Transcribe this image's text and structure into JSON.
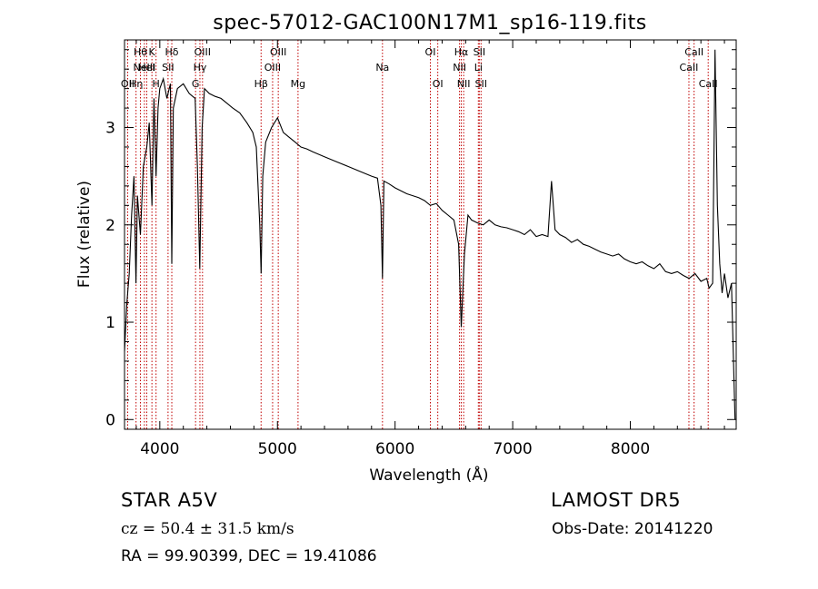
{
  "chart_data": {
    "type": "line",
    "title": "spec-57012-GAC100N17M1_sp16-119.fits",
    "xlabel": "Wavelength (Å)",
    "ylabel": "Flux (relative)",
    "xlim": [
      3700,
      8900
    ],
    "ylim": [
      -0.1,
      3.9
    ],
    "xticks": [
      4000,
      5000,
      6000,
      7000,
      8000
    ],
    "yticks": [
      0,
      1,
      2,
      3
    ],
    "grid": false,
    "line_color": "#000000",
    "marker_color": "#c00000",
    "series": [
      {
        "x": [
          3700,
          3720,
          3740,
          3760,
          3780,
          3797,
          3810,
          3835,
          3860,
          3889,
          3910,
          3933,
          3950,
          3968,
          3985,
          4000,
          4030,
          4060,
          4090,
          4102,
          4115,
          4150,
          4200,
          4250,
          4300,
          4320,
          4340,
          4360,
          4380,
          4420,
          4470,
          4520,
          4570,
          4620,
          4680,
          4740,
          4790,
          4820,
          4850,
          4861,
          4875,
          4900,
          4950,
          5000,
          5050,
          5100,
          5150,
          5200,
          5250,
          5300,
          5400,
          5500,
          5600,
          5700,
          5800,
          5850,
          5880,
          5893,
          5905,
          5950,
          6000,
          6050,
          6100,
          6150,
          6200,
          6250,
          6300,
          6350,
          6400,
          6450,
          6500,
          6540,
          6563,
          6590,
          6620,
          6650,
          6700,
          6750,
          6800,
          6850,
          6900,
          6950,
          7000,
          7050,
          7100,
          7150,
          7200,
          7250,
          7300,
          7330,
          7360,
          7400,
          7450,
          7500,
          7550,
          7600,
          7650,
          7700,
          7750,
          7800,
          7850,
          7900,
          7950,
          8000,
          8050,
          8100,
          8150,
          8200,
          8250,
          8300,
          8350,
          8400,
          8450,
          8500,
          8550,
          8600,
          8650,
          8670,
          8700,
          8720,
          8740,
          8760,
          8780,
          8800,
          8830,
          8860,
          8890
        ],
        "y": [
          0.7,
          1.2,
          1.5,
          2.1,
          2.5,
          1.4,
          2.3,
          1.9,
          2.6,
          2.8,
          3.05,
          2.2,
          3.3,
          2.5,
          3.2,
          3.4,
          3.5,
          3.3,
          3.45,
          1.6,
          3.2,
          3.4,
          3.45,
          3.35,
          3.3,
          2.6,
          1.55,
          3.0,
          3.4,
          3.35,
          3.32,
          3.3,
          3.25,
          3.2,
          3.15,
          3.05,
          2.95,
          2.8,
          2.0,
          1.5,
          2.5,
          2.85,
          3.0,
          3.1,
          2.95,
          2.9,
          2.85,
          2.8,
          2.78,
          2.75,
          2.7,
          2.65,
          2.6,
          2.55,
          2.5,
          2.48,
          2.2,
          1.45,
          2.45,
          2.42,
          2.38,
          2.35,
          2.32,
          2.3,
          2.28,
          2.25,
          2.2,
          2.22,
          2.15,
          2.1,
          2.05,
          1.8,
          0.95,
          1.7,
          2.1,
          2.05,
          2.02,
          2.0,
          2.05,
          2.0,
          1.98,
          1.97,
          1.95,
          1.93,
          1.9,
          1.95,
          1.88,
          1.9,
          1.88,
          2.45,
          1.95,
          1.9,
          1.87,
          1.82,
          1.85,
          1.8,
          1.78,
          1.75,
          1.72,
          1.7,
          1.68,
          1.7,
          1.65,
          1.62,
          1.6,
          1.62,
          1.58,
          1.55,
          1.6,
          1.52,
          1.5,
          1.52,
          1.48,
          1.45,
          1.5,
          1.42,
          1.45,
          1.35,
          1.4,
          3.8,
          2.2,
          1.6,
          1.3,
          1.5,
          1.25,
          1.4,
          0.0
        ]
      }
    ],
    "line_markers": [
      {
        "x": 3727,
        "labels": [
          "OII"
        ],
        "row": 3
      },
      {
        "x": 3798,
        "labels": [
          "Hη"
        ],
        "row": 3
      },
      {
        "x": 3835,
        "labels": [
          "Hθ"
        ],
        "row": 1
      },
      {
        "x": 3869,
        "labels": [
          "NeIII"
        ],
        "row": 2
      },
      {
        "x": 3889,
        "labels": [
          "HeI"
        ],
        "row": 2
      },
      {
        "x": 3933,
        "labels": [
          "K"
        ],
        "row": 1
      },
      {
        "x": 3968,
        "labels": [
          "H"
        ],
        "row": 3
      },
      {
        "x": 4070,
        "labels": [
          "SII"
        ],
        "row": 2
      },
      {
        "x": 4102,
        "labels": [
          "Hδ"
        ],
        "row": 1
      },
      {
        "x": 4304,
        "labels": [
          "G"
        ],
        "row": 3
      },
      {
        "x": 4341,
        "labels": [
          "Hγ"
        ],
        "row": 2
      },
      {
        "x": 4363,
        "labels": [
          "OIII"
        ],
        "row": 1
      },
      {
        "x": 4861,
        "labels": [
          "Hβ"
        ],
        "row": 3
      },
      {
        "x": 4959,
        "labels": [
          "OIII"
        ],
        "row": 2
      },
      {
        "x": 5007,
        "labels": [
          "OIII"
        ],
        "row": 1
      },
      {
        "x": 5175,
        "labels": [
          "Mg"
        ],
        "row": 3
      },
      {
        "x": 5893,
        "labels": [
          "Na"
        ],
        "row": 2
      },
      {
        "x": 6300,
        "labels": [
          "OI"
        ],
        "row": 1
      },
      {
        "x": 6363,
        "labels": [
          "OI"
        ],
        "row": 3
      },
      {
        "x": 6548,
        "labels": [
          "NII"
        ],
        "row": 2
      },
      {
        "x": 6563,
        "labels": [
          "Hα"
        ],
        "row": 1
      },
      {
        "x": 6583,
        "labels": [
          "NII"
        ],
        "row": 3
      },
      {
        "x": 6708,
        "labels": [
          "Li"
        ],
        "row": 2
      },
      {
        "x": 6716,
        "labels": [
          "SII"
        ],
        "row": 1
      },
      {
        "x": 6731,
        "labels": [
          "SII"
        ],
        "row": 3
      },
      {
        "x": 8498,
        "labels": [
          "CaII"
        ],
        "row": 2
      },
      {
        "x": 8542,
        "labels": [
          "CaII"
        ],
        "row": 1
      },
      {
        "x": 8662,
        "labels": [
          "CaII"
        ],
        "row": 3
      }
    ]
  },
  "info": {
    "star_class": "STAR    A5V",
    "survey": "LAMOST DR5",
    "redshift": "cz = 50.4 ± 31.5 km/s",
    "obs_date": "Obs-Date: 20141220",
    "radec": "RA =  99.90399, DEC =  19.41086"
  }
}
